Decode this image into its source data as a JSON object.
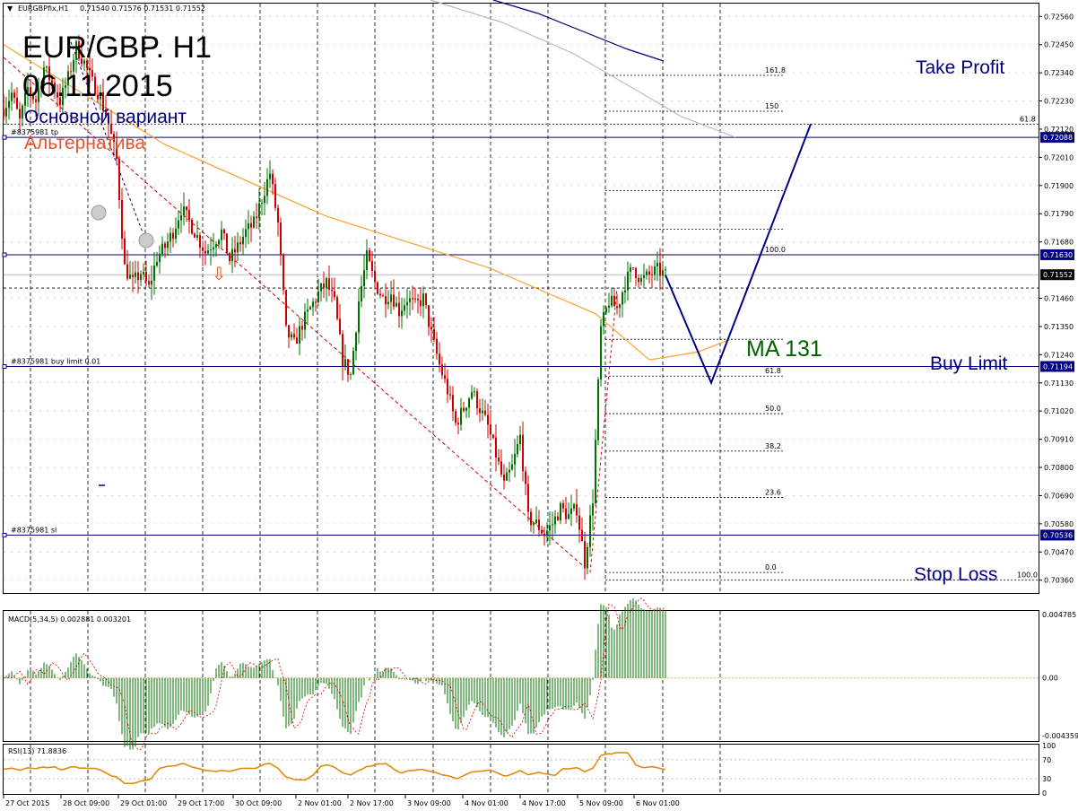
{
  "header": {
    "symbol_info": "EURGBPfix,H1",
    "ohlc": "0.71540 0.71576 0.71531 0.71552"
  },
  "annotations": {
    "title_line1": "EUR/GBP. H1",
    "title_line2": "06.11.2015",
    "main_variant": "Основной вариант",
    "alt_variant": "Альтернатива",
    "take_profit": "Take Profit",
    "buy_limit": "Buy Limit",
    "stop_loss": "Stop Loss",
    "ma_label": "MA 131"
  },
  "colors": {
    "main": "#000080",
    "alternative": "#e8542a",
    "ma": "#ffa030",
    "ma_label": "#006400",
    "bull": "#007000",
    "bear": "#d00000",
    "grid": "#000000"
  },
  "price_axis": {
    "ticks": [
      "0.72560",
      "0.72450",
      "0.72340",
      "0.72230",
      "0.72120",
      "0.72010",
      "0.71900",
      "0.71790",
      "0.71680",
      "0.71460",
      "0.71350",
      "0.71240",
      "0.71130",
      "0.71020",
      "0.70910",
      "0.70800",
      "0.70690",
      "0.70580",
      "0.70470",
      "0.70360"
    ],
    "range": [
      0.7031,
      0.7261
    ],
    "current_price": "0.71552"
  },
  "order_lines": [
    {
      "label": "#8375981 tp",
      "price": "0.72088",
      "role": "take profit"
    },
    {
      "label": "",
      "price": "0.71630",
      "role": "resistance"
    },
    {
      "label": "#8375981 buy limit 0.01",
      "price": "0.71194",
      "role": "buy limit"
    },
    {
      "label": "#8375981 sl",
      "price": "0.70536",
      "role": "stop loss"
    }
  ],
  "fibo_retracement": {
    "levels": [
      "100.0",
      "61.8",
      "50.0",
      "38.2",
      "23.6",
      "0.0"
    ],
    "high": 0.7163,
    "low": 0.7039
  },
  "fibo_expansion": {
    "levels": [
      "161.8",
      "150",
      "61.8",
      "100.0"
    ],
    "prices": [
      0.7233,
      0.7219,
      0.7214,
      0.7036
    ]
  },
  "time_axis": [
    "27 Oct 2015",
    "28 Oct 09:00",
    "29 Oct 01:00",
    "29 Oct 17:00",
    "30 Oct 09:00",
    "2 Nov 01:00",
    "2 Nov 17:00",
    "3 Nov 09:00",
    "4 Nov 01:00",
    "4 Nov 17:00",
    "5 Nov 09:00",
    "6 Nov 01:00"
  ],
  "macd": {
    "label": "MACD(5,34,5) 0.002881 0.003201",
    "ticks": [
      "0.004785",
      "0.00",
      "-0.004359"
    ],
    "range": [
      -0.0047,
      0.005
    ]
  },
  "rsi": {
    "label": "RSI(13) 71.8836",
    "ticks": [
      "100",
      "70",
      "30",
      "0"
    ],
    "range": [
      0,
      100
    ]
  },
  "chart_data": {
    "type": "candlestick",
    "title": "EUR/GBP. H1",
    "price_range": [
      0.7031,
      0.7261
    ],
    "price_path": [
      [
        0,
        0.722
      ],
      [
        3,
        0.7226
      ],
      [
        6,
        0.7215
      ],
      [
        9,
        0.7228
      ],
      [
        12,
        0.7223
      ],
      [
        15,
        0.7236
      ],
      [
        18,
        0.723
      ],
      [
        21,
        0.7223
      ],
      [
        24,
        0.7232
      ],
      [
        27,
        0.7244
      ],
      [
        30,
        0.7238
      ],
      [
        33,
        0.723
      ],
      [
        36,
        0.7225
      ],
      [
        39,
        0.7214
      ],
      [
        42,
        0.72
      ],
      [
        45,
        0.7158
      ],
      [
        48,
        0.7152
      ],
      [
        51,
        0.7156
      ],
      [
        54,
        0.715
      ],
      [
        57,
        0.7162
      ],
      [
        60,
        0.7166
      ],
      [
        63,
        0.7172
      ],
      [
        66,
        0.7181
      ],
      [
        69,
        0.7176
      ],
      [
        72,
        0.717
      ],
      [
        75,
        0.7164
      ],
      [
        78,
        0.7168
      ],
      [
        81,
        0.7172
      ],
      [
        84,
        0.7161
      ],
      [
        87,
        0.7166
      ],
      [
        90,
        0.7172
      ],
      [
        93,
        0.7175
      ],
      [
        96,
        0.7185
      ],
      [
        99,
        0.7195
      ],
      [
        102,
        0.7175
      ],
      [
        105,
        0.7133
      ],
      [
        108,
        0.7128
      ],
      [
        111,
        0.7136
      ],
      [
        114,
        0.7142
      ],
      [
        117,
        0.7148
      ],
      [
        120,
        0.7152
      ],
      [
        123,
        0.7144
      ],
      [
        126,
        0.7122
      ],
      [
        129,
        0.7116
      ],
      [
        132,
        0.7145
      ],
      [
        135,
        0.7162
      ],
      [
        138,
        0.7152
      ],
      [
        141,
        0.7146
      ],
      [
        144,
        0.7148
      ],
      [
        147,
        0.7141
      ],
      [
        150,
        0.7146
      ],
      [
        153,
        0.7143
      ],
      [
        156,
        0.7146
      ],
      [
        159,
        0.7132
      ],
      [
        162,
        0.712
      ],
      [
        165,
        0.711
      ],
      [
        168,
        0.7097
      ],
      [
        171,
        0.7103
      ],
      [
        174,
        0.711
      ],
      [
        177,
        0.7103
      ],
      [
        180,
        0.7096
      ],
      [
        183,
        0.7085
      ],
      [
        186,
        0.7073
      ],
      [
        189,
        0.708
      ],
      [
        192,
        0.7092
      ],
      [
        195,
        0.706
      ],
      [
        198,
        0.7058
      ],
      [
        201,
        0.7054
      ],
      [
        204,
        0.7058
      ],
      [
        207,
        0.7064
      ],
      [
        210,
        0.7061
      ],
      [
        213,
        0.7064
      ],
      [
        216,
        0.7043
      ],
      [
        219,
        0.7068
      ],
      [
        222,
        0.7134
      ],
      [
        225,
        0.7145
      ],
      [
        228,
        0.7142
      ],
      [
        231,
        0.7152
      ],
      [
        234,
        0.7158
      ],
      [
        237,
        0.7153
      ],
      [
        240,
        0.7155
      ],
      [
        243,
        0.7157
      ],
      [
        246,
        0.7155
      ]
    ],
    "ma131": [
      [
        0,
        0.7245
      ],
      [
        60,
        0.7206
      ],
      [
        120,
        0.7178
      ],
      [
        180,
        0.7158
      ],
      [
        220,
        0.714
      ],
      [
        240,
        0.7122
      ],
      [
        258,
        0.7125
      ],
      [
        270,
        0.713
      ]
    ],
    "scenario_main": [
      [
        246,
        0.7155
      ],
      [
        263,
        0.7113
      ],
      [
        300,
        0.7214
      ]
    ],
    "scenario_alternative": [
      [
        0,
        0.724
      ],
      [
        216,
        0.7041
      ]
    ],
    "time_labels": [
      "27 Oct 2015",
      "28 Oct 09:00",
      "29 Oct 01:00",
      "29 Oct 17:00",
      "30 Oct 09:00",
      "2 Nov 01:00",
      "2 Nov 17:00",
      "3 Nov 09:00",
      "4 Nov 01:00",
      "4 Nov 17:00",
      "5 Nov 09:00",
      "6 Nov 01:00"
    ],
    "legend": [
      "Основной вариант",
      "Альтернатива"
    ]
  }
}
